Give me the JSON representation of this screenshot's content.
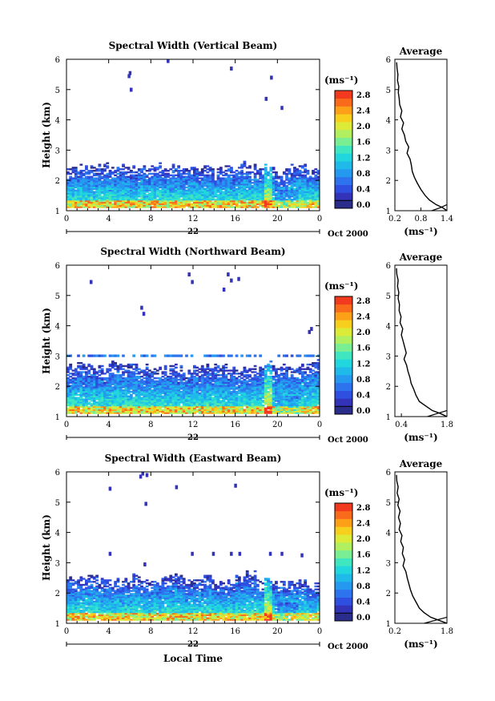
{
  "figure": {
    "xlabel": "Local Time",
    "date_label": "Oct 2000",
    "day_label": "22",
    "ylabel": "Height (km)",
    "avg_title": "Average",
    "unit_label": "(ms⁻¹)"
  },
  "chart_data": [
    {
      "type": "heatmap",
      "title": "Spectral Width (Vertical Beam)",
      "xlabel": "Local Time",
      "ylabel": "Height (km)",
      "xlim": [
        0,
        24
      ],
      "xticks": [
        "0",
        "4",
        "8",
        "12",
        "16",
        "20",
        "0"
      ],
      "ylim": [
        1,
        6
      ],
      "yticks": [
        "1",
        "2",
        "3",
        "4",
        "5",
        "6"
      ],
      "colorbar": {
        "label": "(ms⁻¹)",
        "range": [
          0.0,
          3.0
        ],
        "ticks": [
          "0.0",
          "0.4",
          "0.8",
          "1.2",
          "1.6",
          "2.0",
          "2.4",
          "2.8"
        ]
      },
      "echo_layer_top_km": [
        2.4,
        2.5,
        2.4,
        2.5,
        2.4,
        2.5,
        2.4,
        2.4,
        2.5,
        2.4,
        2.5,
        2.4,
        2.4,
        2.5,
        2.4,
        2.4,
        2.5,
        2.4,
        2.4,
        2.4,
        2.3,
        2.4,
        2.4,
        2.4
      ],
      "isolated_echoes": [
        [
          5.9,
          5.55
        ],
        [
          5.8,
          5.45
        ],
        [
          6.0,
          5.0
        ],
        [
          9.5,
          5.95
        ],
        [
          15.5,
          5.7
        ],
        [
          18.8,
          4.7
        ],
        [
          19.3,
          5.4
        ],
        [
          20.3,
          4.4
        ]
      ],
      "profile": {
        "title": "Average",
        "xlabel": "(ms⁻¹)",
        "xlim": [
          0.2,
          1.4
        ],
        "xticks": [
          "0.2",
          "0.8",
          "1.4"
        ],
        "height_km": [
          1.0,
          1.1,
          1.2,
          1.35,
          1.5,
          1.7,
          1.9,
          2.1,
          2.3,
          2.5,
          2.7,
          2.9,
          3.1,
          3.3,
          3.5,
          3.7,
          3.9,
          4.1,
          4.3,
          4.5,
          4.7,
          4.9,
          5.1,
          5.3,
          5.5,
          5.7,
          5.9
        ],
        "mean_width": [
          1.4,
          1.3,
          1.15,
          1.0,
          0.9,
          0.8,
          0.72,
          0.65,
          0.6,
          0.58,
          0.55,
          0.48,
          0.52,
          0.45,
          0.42,
          0.36,
          0.4,
          0.33,
          0.36,
          0.31,
          0.3,
          0.28,
          0.29,
          0.26,
          0.27,
          0.25,
          0.24
        ],
        "low_branch": {
          "height_km": [
            1.0,
            1.1,
            1.2
          ],
          "mean_width": [
            1.05,
            1.25,
            1.4
          ]
        }
      }
    },
    {
      "type": "heatmap",
      "title": "Spectral Width (Northward Beam)",
      "xlabel": "Local Time",
      "ylabel": "Height (km)",
      "xlim": [
        0,
        24
      ],
      "xticks": [
        "0",
        "4",
        "8",
        "12",
        "16",
        "20",
        "0"
      ],
      "ylim": [
        1,
        6
      ],
      "yticks": [
        "1",
        "2",
        "3",
        "4",
        "5",
        "6"
      ],
      "colorbar": {
        "label": "(ms⁻¹)",
        "range": [
          0.0,
          3.0
        ],
        "ticks": [
          "0.0",
          "0.4",
          "0.8",
          "1.2",
          "1.6",
          "2.0",
          "2.4",
          "2.8"
        ]
      },
      "echo_layer_top_km": [
        2.6,
        2.7,
        2.6,
        2.6,
        2.7,
        2.6,
        2.7,
        2.6,
        2.6,
        2.7,
        2.6,
        2.5,
        2.6,
        2.7,
        2.6,
        2.6,
        2.5,
        2.6,
        2.6,
        2.7,
        2.6,
        2.6,
        2.7,
        2.8
      ],
      "upper_layer_km": 3.0,
      "isolated_echoes": [
        [
          2.2,
          5.45
        ],
        [
          7.0,
          4.6
        ],
        [
          7.2,
          4.4
        ],
        [
          11.5,
          5.7
        ],
        [
          11.8,
          5.45
        ],
        [
          14.8,
          5.2
        ],
        [
          15.2,
          5.7
        ],
        [
          15.5,
          5.5
        ],
        [
          16.2,
          5.55
        ],
        [
          22.9,
          3.8
        ],
        [
          23.1,
          3.9
        ]
      ],
      "profile": {
        "title": "Average",
        "xlabel": "(ms⁻¹)",
        "xlim": [
          0.2,
          1.8
        ],
        "xticks": [
          "0.4",
          "1.8"
        ],
        "height_km": [
          1.0,
          1.1,
          1.2,
          1.35,
          1.5,
          1.7,
          1.9,
          2.1,
          2.3,
          2.5,
          2.7,
          2.9,
          3.1,
          3.3,
          3.5,
          3.7,
          3.9,
          4.1,
          4.3,
          4.5,
          4.7,
          4.9,
          5.1,
          5.3,
          5.5,
          5.7,
          5.9
        ],
        "mean_width": [
          1.8,
          1.6,
          1.35,
          1.15,
          0.95,
          0.85,
          0.78,
          0.7,
          0.66,
          0.6,
          0.56,
          0.48,
          0.55,
          0.5,
          0.45,
          0.4,
          0.44,
          0.36,
          0.39,
          0.33,
          0.34,
          0.3,
          0.32,
          0.28,
          0.3,
          0.26,
          0.25
        ],
        "low_branch": {
          "height_km": [
            1.0,
            1.1,
            1.2
          ],
          "mean_width": [
            1.2,
            1.5,
            1.8
          ]
        }
      }
    },
    {
      "type": "heatmap",
      "title": "Spectral Width (Eastward Beam)",
      "xlabel": "Local Time",
      "ylabel": "Height (km)",
      "xlim": [
        0,
        24
      ],
      "xticks": [
        "0",
        "4",
        "8",
        "12",
        "16",
        "20",
        "0"
      ],
      "ylim": [
        1,
        6
      ],
      "yticks": [
        "1",
        "2",
        "3",
        "4",
        "5",
        "6"
      ],
      "colorbar": {
        "label": "(ms⁻¹)",
        "range": [
          0.0,
          3.0
        ],
        "ticks": [
          "0.0",
          "0.4",
          "0.8",
          "1.2",
          "1.6",
          "2.0",
          "2.4",
          "2.8"
        ]
      },
      "echo_layer_top_km": [
        2.4,
        2.4,
        2.5,
        2.4,
        2.4,
        2.4,
        2.5,
        2.4,
        2.4,
        2.5,
        2.5,
        2.4,
        2.4,
        2.5,
        2.4,
        2.4,
        2.5,
        2.6,
        2.4,
        2.4,
        2.3,
        2.4,
        2.4,
        2.3
      ],
      "isolated_echoes": [
        [
          4.0,
          5.45
        ],
        [
          6.9,
          5.85
        ],
        [
          7.1,
          5.95
        ],
        [
          7.5,
          5.9
        ],
        [
          7.4,
          4.95
        ],
        [
          10.3,
          5.5
        ],
        [
          15.9,
          5.55
        ],
        [
          4.0,
          3.3
        ],
        [
          7.3,
          2.95
        ],
        [
          11.8,
          3.3
        ],
        [
          13.8,
          3.3
        ],
        [
          15.5,
          3.3
        ],
        [
          16.3,
          3.3
        ],
        [
          19.2,
          3.3
        ],
        [
          20.3,
          3.3
        ],
        [
          22.2,
          3.25
        ]
      ],
      "profile": {
        "title": "Average",
        "xlabel": "(ms⁻¹)",
        "xlim": [
          0.2,
          1.8
        ],
        "xticks": [
          "0.2",
          "1.8"
        ],
        "height_km": [
          1.0,
          1.1,
          1.2,
          1.35,
          1.5,
          1.7,
          1.9,
          2.1,
          2.3,
          2.5,
          2.7,
          2.9,
          3.1,
          3.3,
          3.5,
          3.7,
          3.9,
          4.1,
          4.3,
          4.5,
          4.7,
          4.9,
          5.1,
          5.3,
          5.5,
          5.7,
          5.9
        ],
        "mean_width": [
          1.8,
          1.55,
          1.3,
          1.1,
          0.95,
          0.85,
          0.75,
          0.68,
          0.63,
          0.58,
          0.54,
          0.45,
          0.5,
          0.43,
          0.46,
          0.38,
          0.42,
          0.33,
          0.37,
          0.31,
          0.36,
          0.29,
          0.33,
          0.27,
          0.3,
          0.26,
          0.25
        ],
        "low_branch": {
          "height_km": [
            1.0,
            1.1,
            1.2
          ],
          "mean_width": [
            1.1,
            1.45,
            1.8
          ]
        }
      }
    }
  ]
}
